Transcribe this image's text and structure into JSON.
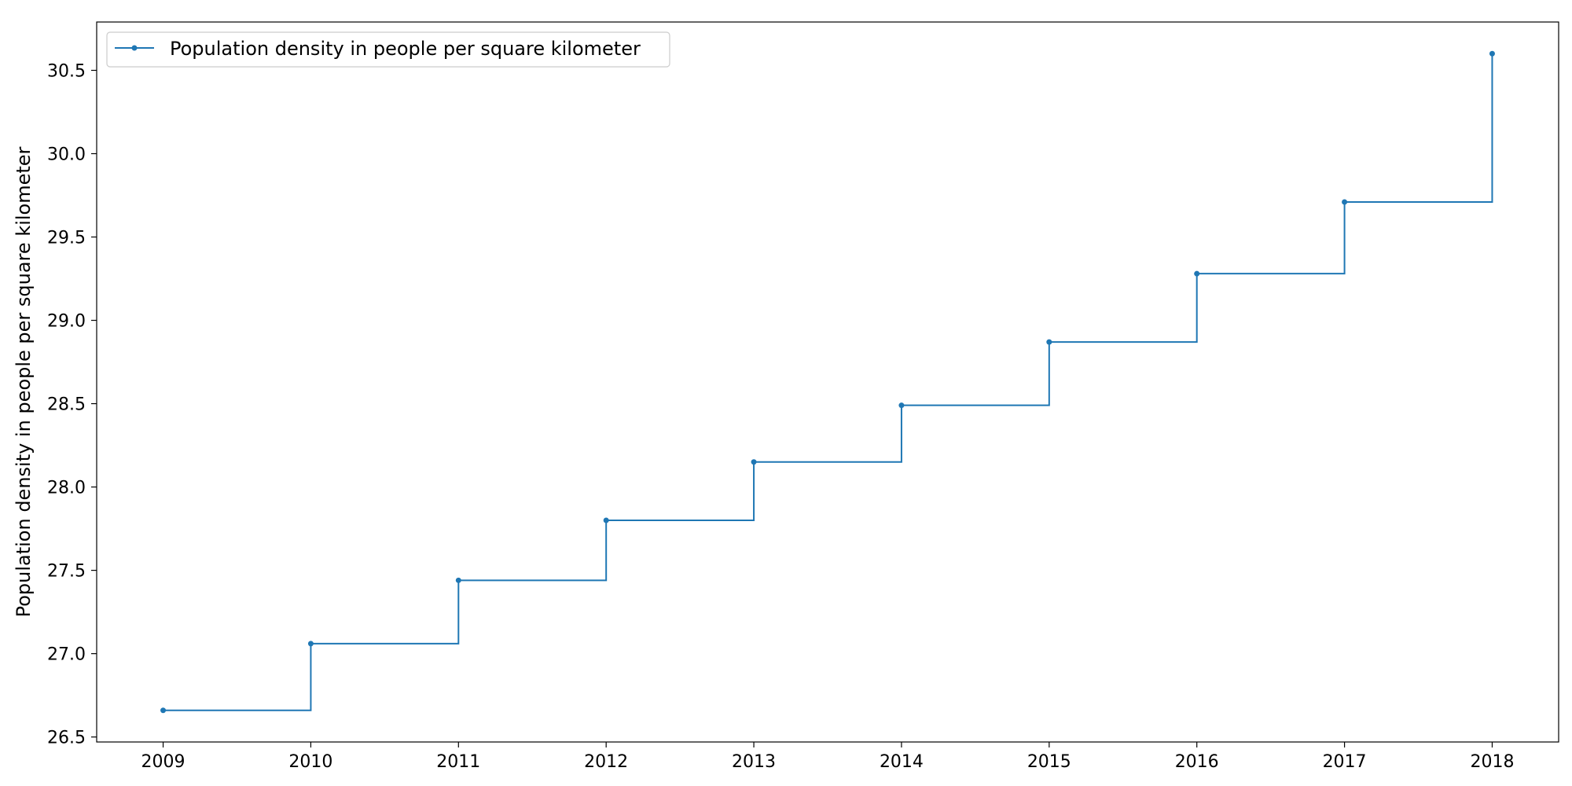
{
  "chart_data": {
    "type": "line",
    "step": "post",
    "x": [
      2009,
      2010,
      2011,
      2012,
      2013,
      2014,
      2015,
      2016,
      2017,
      2018
    ],
    "series": [
      {
        "name": "Population density in people per square kilometer",
        "color": "#1f77b4",
        "marker": "point",
        "values": [
          26.66,
          27.06,
          27.44,
          27.8,
          28.15,
          28.49,
          28.87,
          29.28,
          29.71,
          30.6
        ]
      }
    ],
    "xlabel": "",
    "ylabel": "Population density in people per square kilometer",
    "xlim": [
      2008.55,
      2018.45
    ],
    "ylim": [
      26.47,
      30.79
    ],
    "xticks": [
      "2009",
      "2010",
      "2011",
      "2012",
      "2013",
      "2014",
      "2015",
      "2016",
      "2017",
      "2018"
    ],
    "yticks": [
      "26.5",
      "27.0",
      "27.5",
      "28.0",
      "28.5",
      "29.0",
      "29.5",
      "30.0",
      "30.5"
    ],
    "grid": false,
    "legend_position": "top-left"
  }
}
